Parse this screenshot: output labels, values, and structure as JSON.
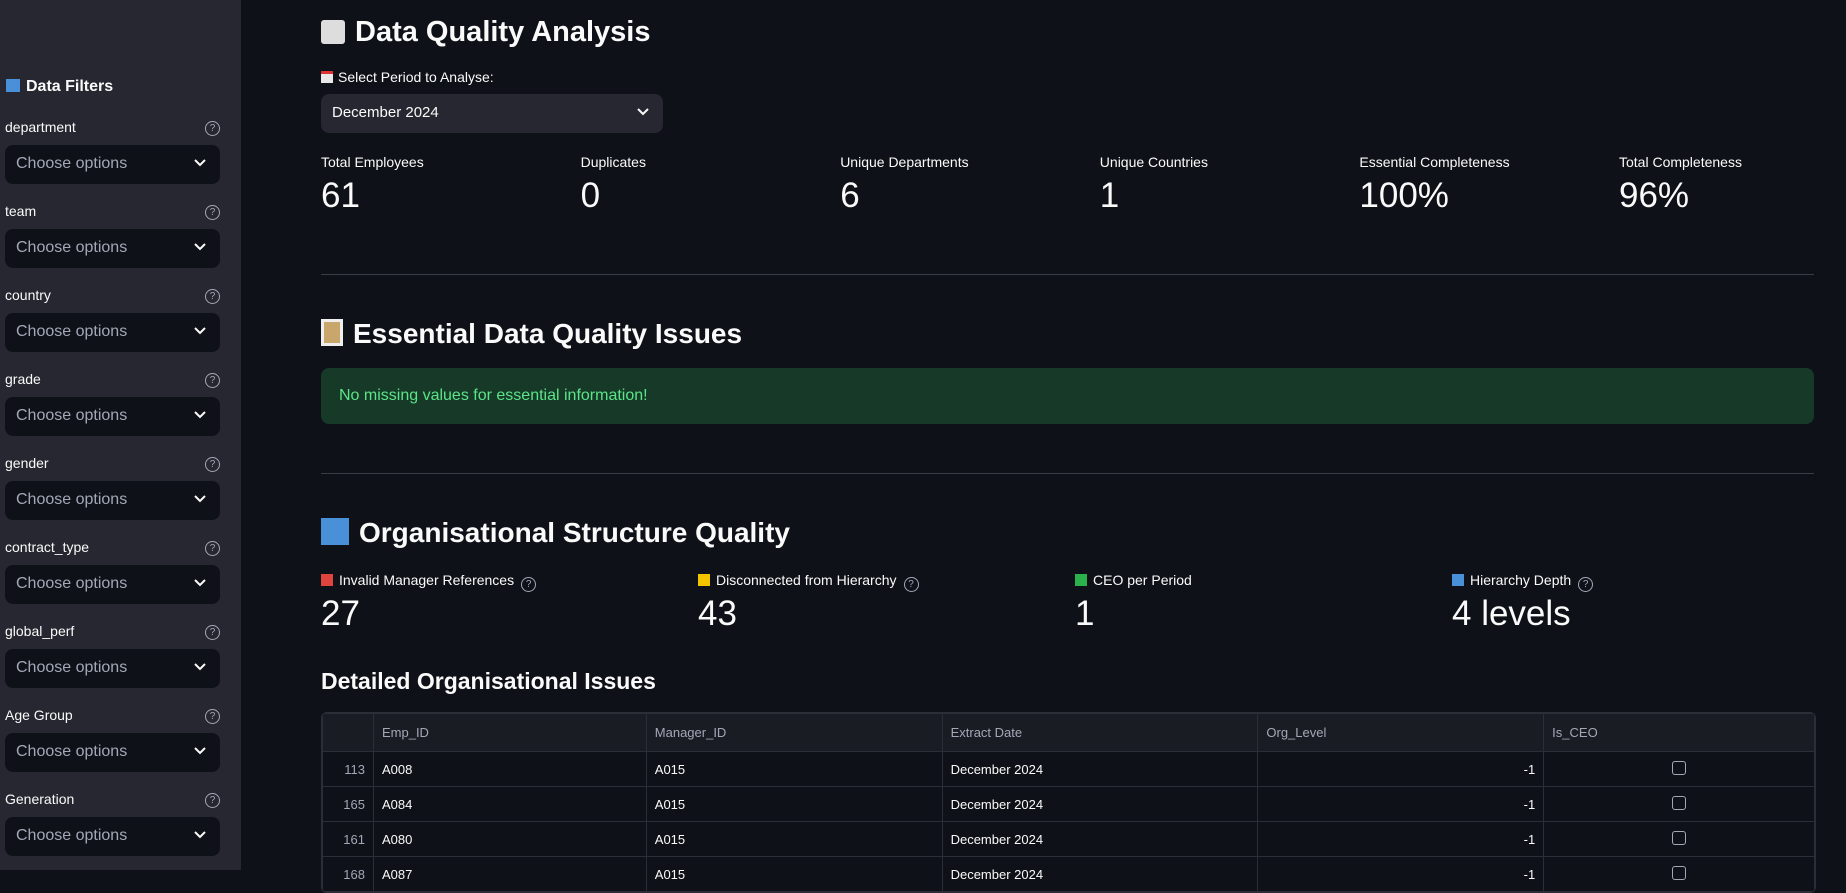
{
  "sidebar": {
    "title": "Data Filters",
    "filters": [
      {
        "label": "department",
        "placeholder": "Choose options"
      },
      {
        "label": "team",
        "placeholder": "Choose options"
      },
      {
        "label": "country",
        "placeholder": "Choose options"
      },
      {
        "label": "grade",
        "placeholder": "Choose options"
      },
      {
        "label": "gender",
        "placeholder": "Choose options"
      },
      {
        "label": "contract_type",
        "placeholder": "Choose options"
      },
      {
        "label": "global_perf",
        "placeholder": "Choose options"
      },
      {
        "label": "Age Group",
        "placeholder": "Choose options"
      },
      {
        "label": "Generation",
        "placeholder": "Choose options"
      }
    ]
  },
  "main": {
    "title": "Data Quality Analysis",
    "period_label": "Select Period to Analyse:",
    "period_value": "December 2024",
    "metrics": [
      {
        "label": "Total Employees",
        "value": "61"
      },
      {
        "label": "Duplicates",
        "value": "0"
      },
      {
        "label": "Unique Departments",
        "value": "6"
      },
      {
        "label": "Unique Countries",
        "value": "1"
      },
      {
        "label": "Essential Completeness",
        "value": "100%"
      },
      {
        "label": "Total Completeness",
        "value": "96%"
      }
    ],
    "essential": {
      "title": "Essential Data Quality Issues",
      "message": "No missing values for essential information!"
    },
    "org": {
      "title": "Organisational Structure Quality",
      "metrics": [
        {
          "label": "Invalid Manager References",
          "value": "27"
        },
        {
          "label": "Disconnected from Hierarchy",
          "value": "43"
        },
        {
          "label": "CEO per Period",
          "value": "1"
        },
        {
          "label": "Hierarchy Depth",
          "value": "4 levels"
        }
      ],
      "table_title": "Detailed Organisational Issues",
      "table": {
        "columns": [
          "Emp_ID",
          "Manager_ID",
          "Extract Date",
          "Org_Level",
          "Is_CEO"
        ],
        "rows": [
          [
            "113",
            "A008",
            "A015",
            "December 2024",
            "-1",
            false
          ],
          [
            "165",
            "A084",
            "A015",
            "December 2024",
            "-1",
            false
          ],
          [
            "161",
            "A080",
            "A015",
            "December 2024",
            "-1",
            false
          ],
          [
            "168",
            "A087",
            "A015",
            "December 2024",
            "-1",
            false
          ]
        ]
      }
    }
  }
}
